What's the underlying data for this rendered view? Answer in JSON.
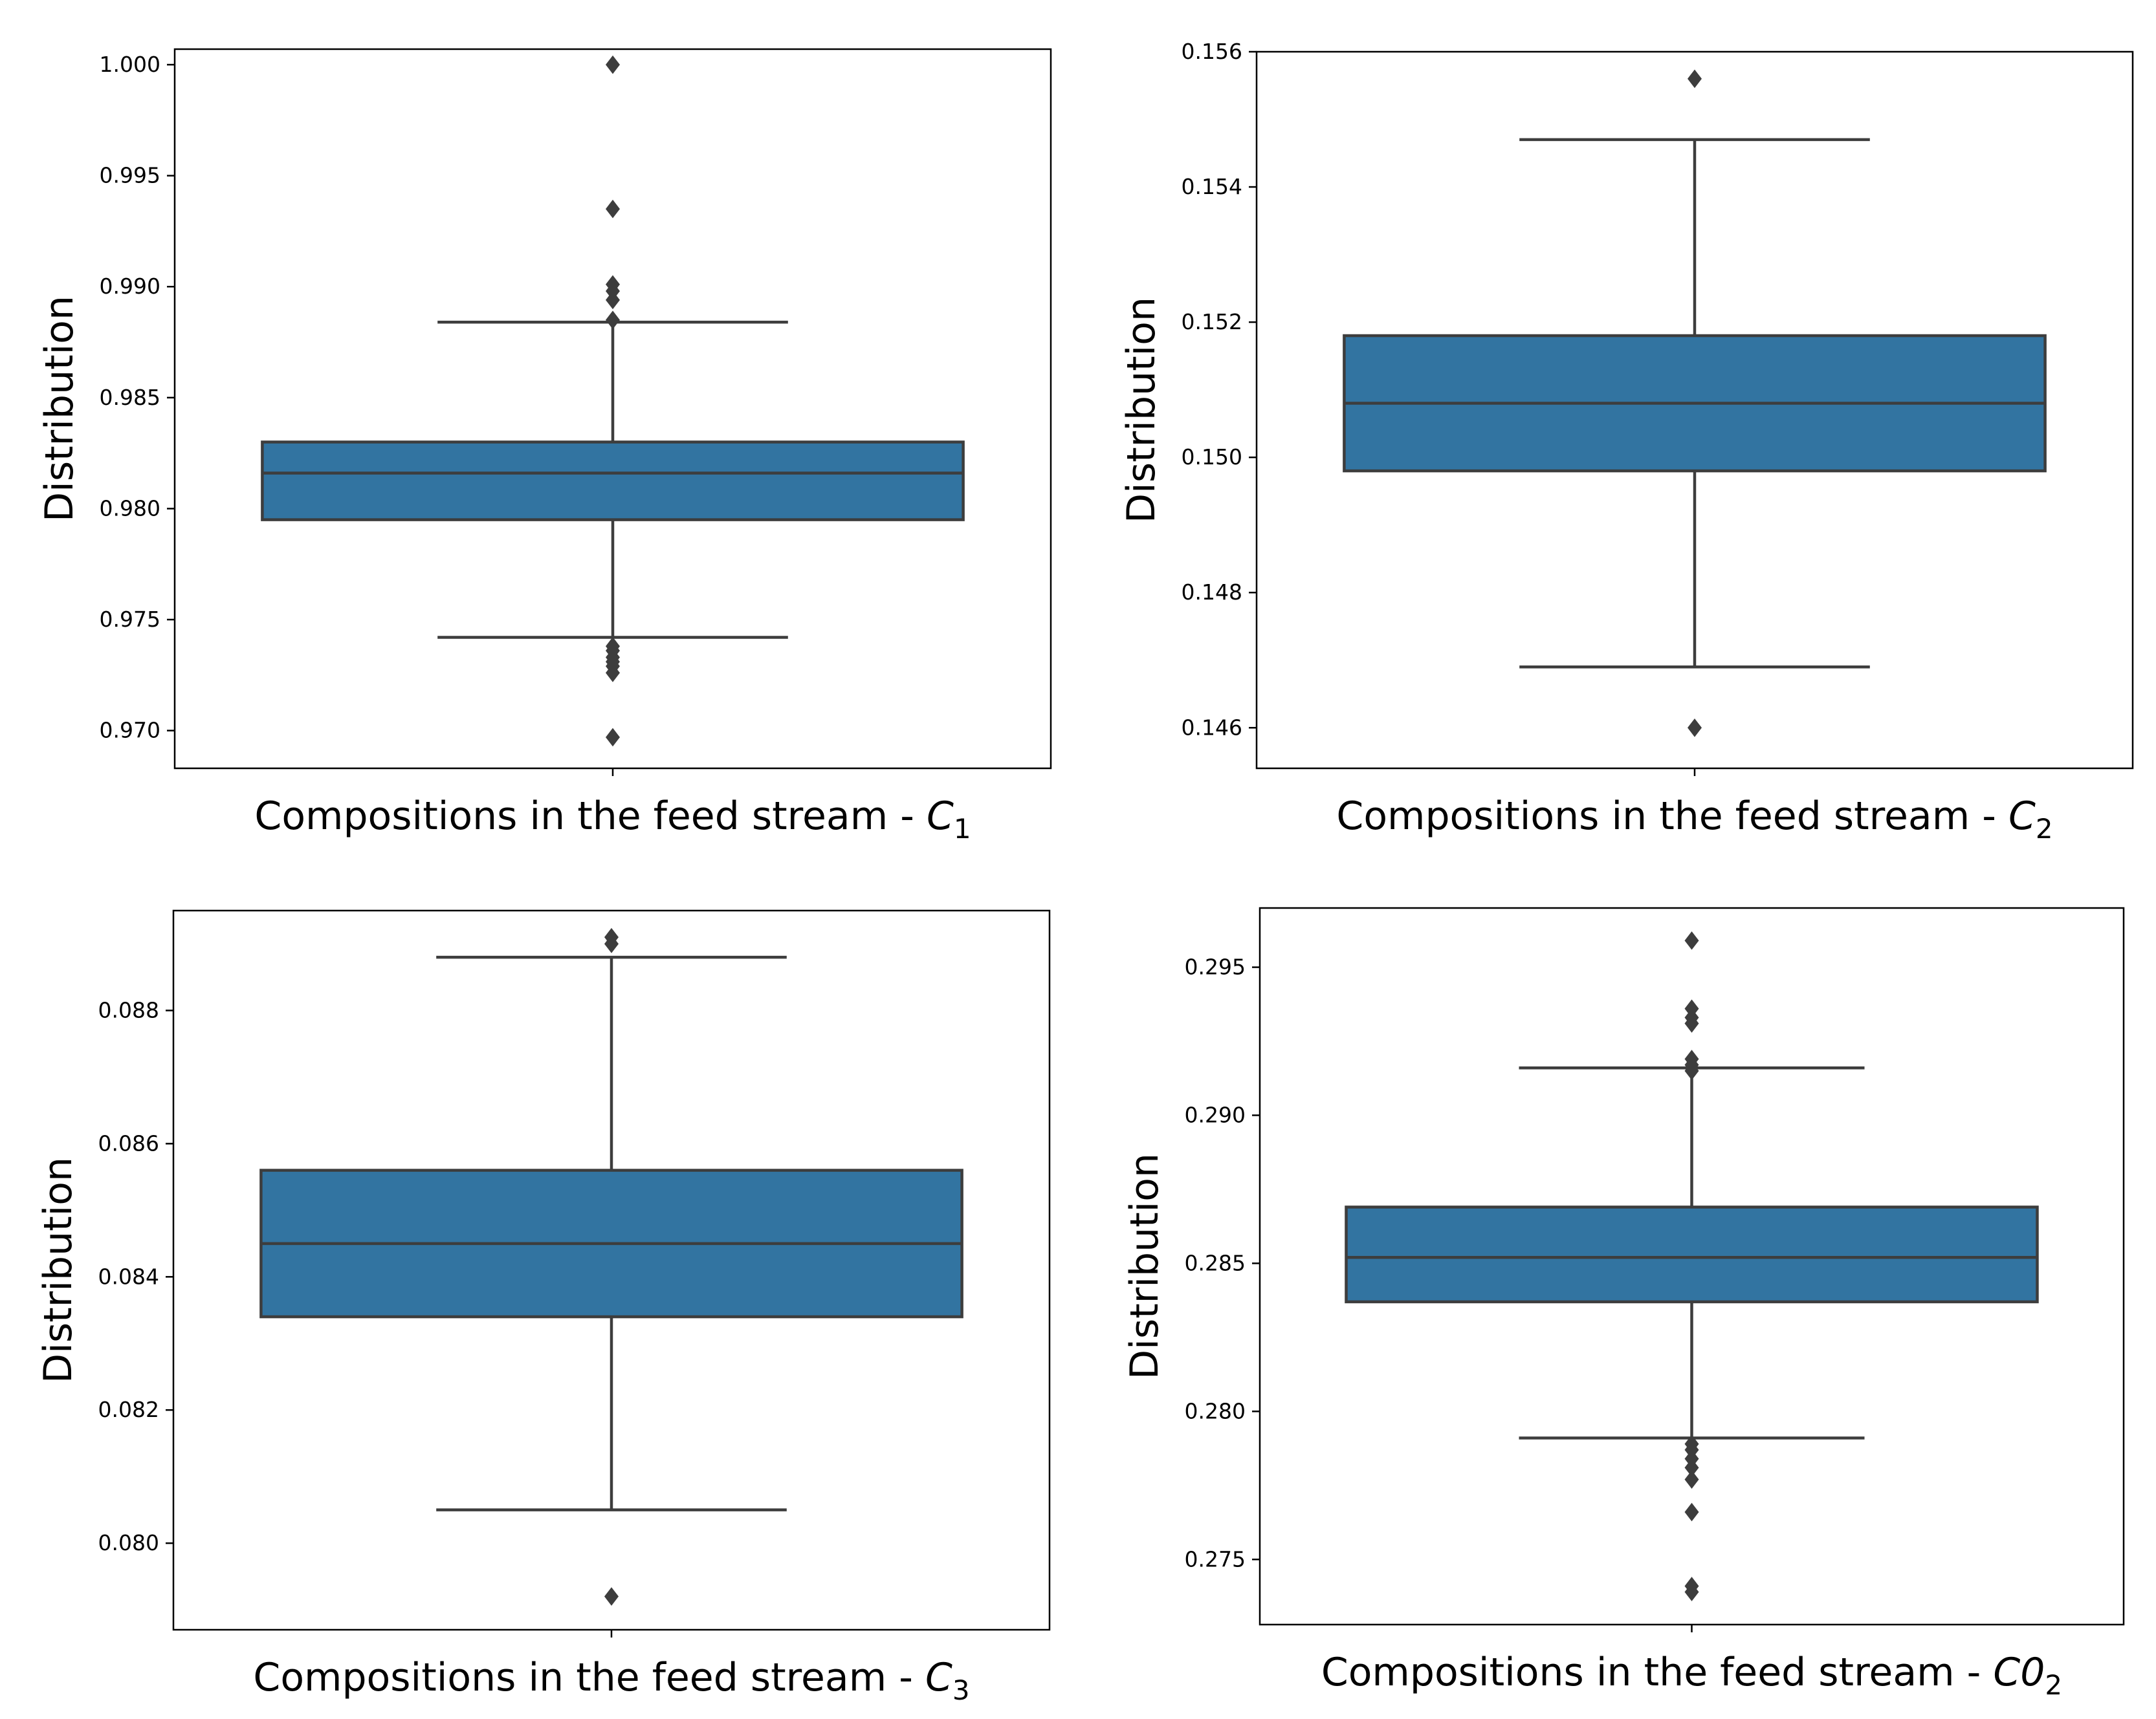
{
  "chart_data": [
    {
      "type": "box",
      "ylabel": "Distribution",
      "xlabel": "Compositions in the feed stream - ",
      "xlabel_var": "C",
      "xlabel_sub": "1",
      "yticks": [
        0.97,
        0.975,
        0.98,
        0.985,
        0.99,
        0.995,
        1.0
      ],
      "ytick_labels": [
        "0.970",
        "0.975",
        "0.980",
        "0.985",
        "0.990",
        "0.995",
        "1.000"
      ],
      "ylim": [
        0.9683,
        1.0007
      ],
      "box": {
        "whisker_low": 0.9742,
        "q1": 0.9795,
        "median": 0.9816,
        "q3": 0.983,
        "whisker_high": 0.9884
      },
      "outliers": [
        0.9697,
        0.9726,
        0.9729,
        0.9731,
        0.9733,
        0.9736,
        0.9738,
        0.9885,
        0.9894,
        0.9898,
        0.9901,
        0.9935,
        1.0
      ]
    },
    {
      "type": "box",
      "ylabel": "Distribution",
      "xlabel": "Compositions in the feed stream - ",
      "xlabel_var": "C",
      "xlabel_sub": "2",
      "yticks": [
        0.146,
        0.148,
        0.15,
        0.152,
        0.154,
        0.156
      ],
      "ytick_labels": [
        "0.146",
        "0.148",
        "0.150",
        "0.152",
        "0.154",
        "0.156"
      ],
      "ylim": [
        0.1454,
        0.156
      ],
      "box": {
        "whisker_low": 0.1469,
        "q1": 0.1498,
        "median": 0.1508,
        "q3": 0.1518,
        "whisker_high": 0.1547
      },
      "outliers": [
        0.146,
        0.1556
      ]
    },
    {
      "type": "box",
      "ylabel": "Distribution",
      "xlabel": "Compositions in the feed stream - ",
      "xlabel_var": "C",
      "xlabel_sub": "3",
      "yticks": [
        0.08,
        0.082,
        0.084,
        0.086,
        0.088
      ],
      "ytick_labels": [
        "0.080",
        "0.082",
        "0.084",
        "0.086",
        "0.088"
      ],
      "ylim": [
        0.0787,
        0.0895
      ],
      "box": {
        "whisker_low": 0.0805,
        "q1": 0.0834,
        "median": 0.0845,
        "q3": 0.0856,
        "whisker_high": 0.0888
      },
      "outliers": [
        0.0792,
        0.089,
        0.0891
      ]
    },
    {
      "type": "box",
      "ylabel": "Distribution",
      "xlabel": "Compositions in the feed stream - ",
      "xlabel_var": "C0",
      "xlabel_sub": "2",
      "yticks": [
        0.275,
        0.28,
        0.285,
        0.29,
        0.295
      ],
      "ytick_labels": [
        "0.275",
        "0.280",
        "0.285",
        "0.290",
        "0.295"
      ],
      "ylim": [
        0.2728,
        0.297
      ],
      "box": {
        "whisker_low": 0.2791,
        "q1": 0.2837,
        "median": 0.2852,
        "q3": 0.2869,
        "whisker_high": 0.2916
      },
      "outliers": [
        0.2739,
        0.2741,
        0.2766,
        0.2777,
        0.2781,
        0.2784,
        0.2787,
        0.2789,
        0.2915,
        0.2917,
        0.2919,
        0.2931,
        0.2933,
        0.2936,
        0.2959
      ]
    }
  ]
}
